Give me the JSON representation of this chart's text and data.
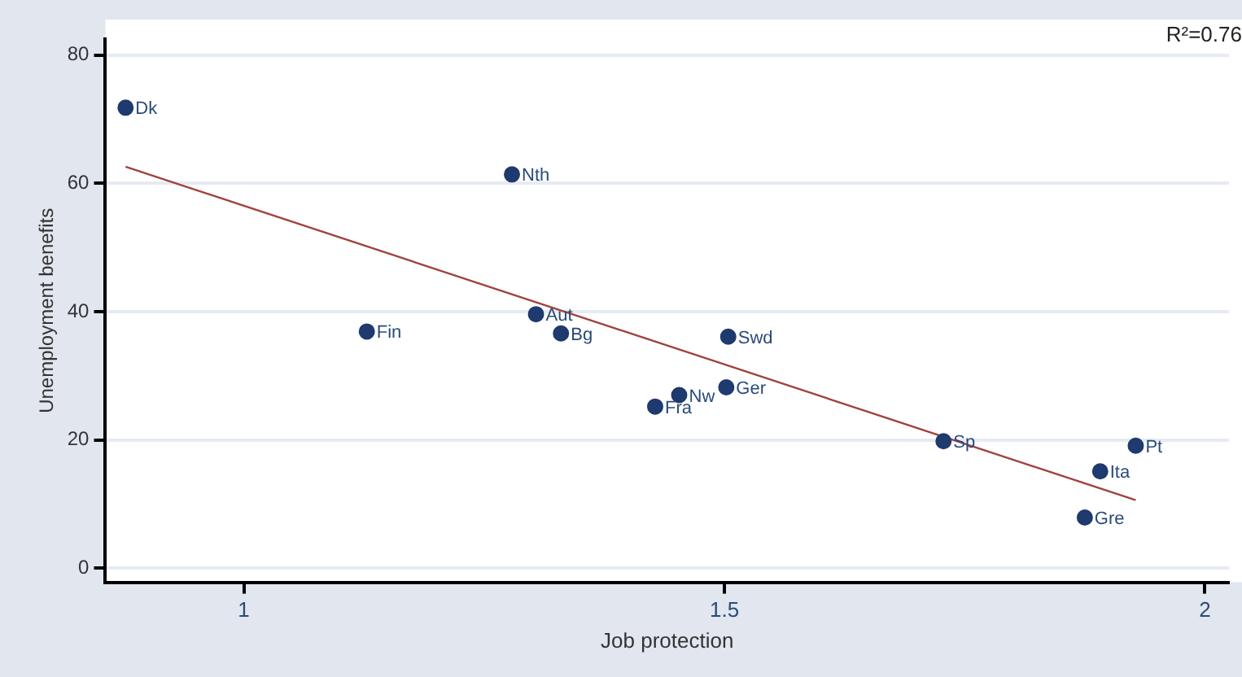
{
  "chart_data": {
    "type": "scatter",
    "xlabel": "Job protection",
    "ylabel": "Unemployment benefits",
    "xlim": [
      0.856,
      2.025
    ],
    "xticks": [
      1,
      1.5,
      2
    ],
    "ylim": [
      -2.2,
      82.5
    ],
    "yticks": [
      0,
      20,
      40,
      60,
      80
    ],
    "grid": "y",
    "series": [
      {
        "color": "#1f3a6e",
        "marker": "circle",
        "x": [
          0.877,
          1.279,
          1.128,
          1.304,
          1.33,
          1.504,
          1.502,
          1.453,
          1.428,
          1.728,
          1.928,
          1.891,
          1.875
        ],
        "values": [
          71.8,
          61.4,
          36.9,
          39.6,
          36.6,
          36.1,
          28.2,
          27.0,
          25.2,
          19.8,
          19.1,
          15.1,
          7.9
        ]
      },
      {
        "type": "line",
        "color": "#a0423f",
        "x": [
          0.877,
          1.928
        ],
        "values": [
          62.6,
          10.6
        ]
      }
    ],
    "annotations": [
      {
        "text": "Dk",
        "x": 0.877,
        "y": 71.8
      },
      {
        "text": "Nth",
        "x": 1.279,
        "y": 61.4
      },
      {
        "text": "Fin",
        "x": 1.128,
        "y": 36.9
      },
      {
        "text": "Aut",
        "x": 1.304,
        "y": 39.6
      },
      {
        "text": "Bg",
        "x": 1.33,
        "y": 36.6
      },
      {
        "text": "Swd",
        "x": 1.504,
        "y": 36.1
      },
      {
        "text": "Ger",
        "x": 1.502,
        "y": 28.2
      },
      {
        "text": "Nw",
        "x": 1.453,
        "y": 27.0
      },
      {
        "text": "Fra",
        "x": 1.428,
        "y": 25.2
      },
      {
        "text": "Sp",
        "x": 1.728,
        "y": 19.8
      },
      {
        "text": "Pt",
        "x": 1.928,
        "y": 19.1
      },
      {
        "text": "Ita",
        "x": 1.891,
        "y": 15.1
      },
      {
        "text": "Gre",
        "x": 1.875,
        "y": 7.9
      },
      "R²=0.76"
    ]
  }
}
